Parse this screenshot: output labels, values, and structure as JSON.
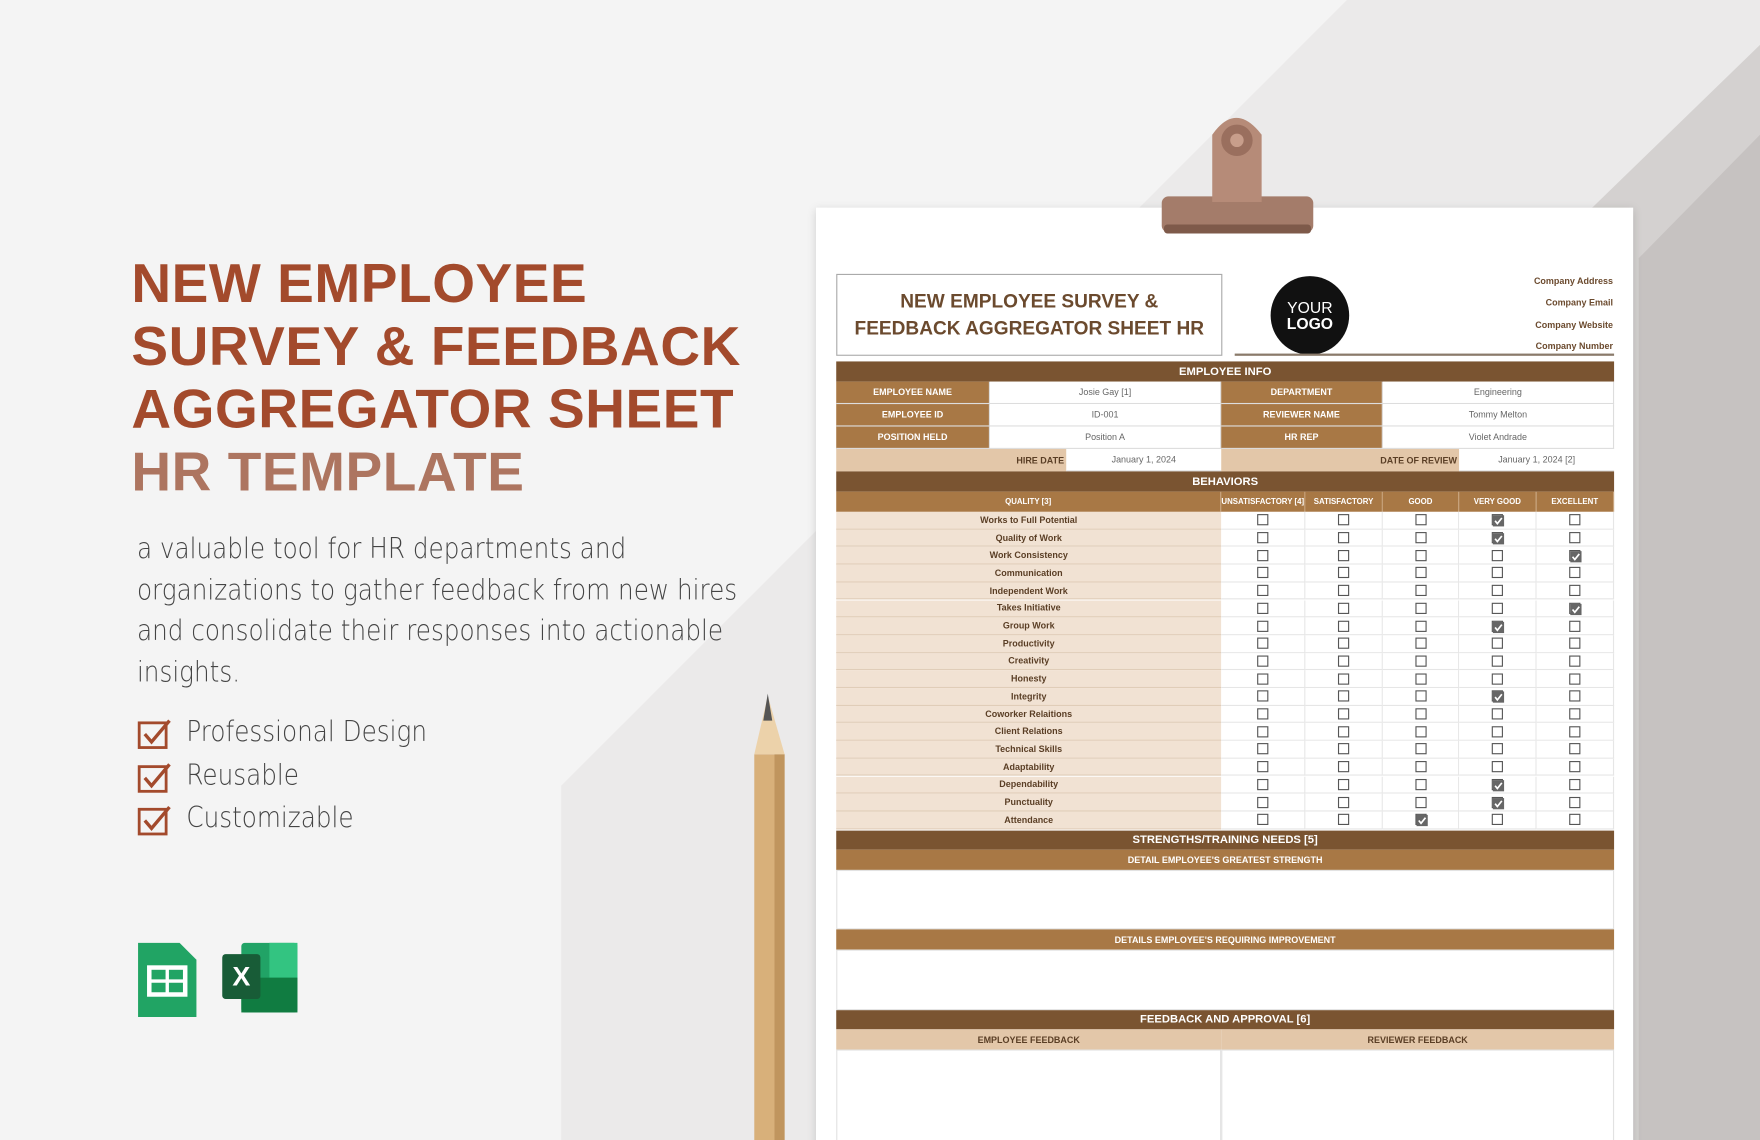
{
  "hero": {
    "title_lines": [
      "NEW EMPLOYEE",
      "SURVEY & FEEDBACK",
      "AGGREGATOR SHEET"
    ],
    "subtitle": "HR TEMPLATE",
    "description": [
      "a valuable tool for HR departments and",
      "organizations to gather feedback from new hires",
      "and consolidate their responses into actionable",
      "insights."
    ],
    "features": [
      "Professional Design",
      "Reusable",
      "Customizable"
    ]
  },
  "sheet": {
    "title_lines": [
      "NEW EMPLOYEE SURVEY &",
      "FEEDBACK AGGREGATOR SHEET HR"
    ],
    "logo": [
      "YOUR",
      "LOGO"
    ],
    "company": [
      "Company Address",
      "Company Email",
      "Company Website",
      "Company Number"
    ],
    "employee_info": {
      "header": "EMPLOYEE INFO",
      "rows": [
        [
          "EMPLOYEE NAME",
          "Josie Gay [1]",
          "DEPARTMENT",
          "Engineering"
        ],
        [
          "EMPLOYEE ID",
          "ID-001",
          "REVIEWER NAME",
          "Tommy Melton"
        ],
        [
          "POSITION HELD",
          "Position A",
          "HR REP",
          "Violet Andrade"
        ]
      ],
      "hire_date_label": "HIRE DATE",
      "hire_date": "January 1, 2024",
      "review_label": "DATE OF REVIEW",
      "review_date": "January 1, 2024 [2]"
    },
    "behaviors": {
      "header": "BEHAVIORS",
      "columns": [
        "QUALITY [3]",
        "UNSATISFACTORY [4]",
        "SATISFACTORY",
        "GOOD",
        "VERY GOOD",
        "EXCELLENT"
      ],
      "rows": [
        "Works to Full Potential",
        "Quality of Work",
        "Work Consistency",
        "Communication",
        "Independent Work",
        "Takes Initiative",
        "Group Work",
        "Productivity",
        "Creativity",
        "Honesty",
        "Integrity",
        "Coworker Relaitions",
        "Client Relations",
        "Technical Skills",
        "Adaptability",
        "Dependability",
        "Punctuality",
        "Attendance"
      ],
      "checks": [
        [
          false,
          false,
          false,
          true,
          false
        ],
        [
          false,
          false,
          false,
          true,
          false
        ],
        [
          false,
          false,
          false,
          false,
          true
        ],
        [
          false,
          false,
          false,
          false,
          false
        ],
        [
          false,
          false,
          false,
          false,
          false
        ],
        [
          false,
          false,
          false,
          false,
          true
        ],
        [
          false,
          false,
          false,
          true,
          false
        ],
        [
          false,
          false,
          false,
          false,
          false
        ],
        [
          false,
          false,
          false,
          false,
          false
        ],
        [
          false,
          false,
          false,
          false,
          false
        ],
        [
          false,
          false,
          false,
          true,
          false
        ],
        [
          false,
          false,
          false,
          false,
          false
        ],
        [
          false,
          false,
          false,
          false,
          false
        ],
        [
          false,
          false,
          false,
          false,
          false
        ],
        [
          false,
          false,
          false,
          false,
          false
        ],
        [
          false,
          false,
          false,
          true,
          false
        ],
        [
          false,
          false,
          false,
          true,
          false
        ],
        [
          false,
          false,
          true,
          false,
          false
        ]
      ]
    },
    "strengths": {
      "header": "STRENGTHS/TRAINING NEEDS [5]",
      "strength": "DETAIL EMPLOYEE'S GREATEST STRENGTH",
      "improvement": "DETAILS EMPLOYEE'S REQUIRING IMPROVEMENT"
    },
    "feedback": {
      "header": "FEEDBACK AND APPROVAL [6]",
      "employee": "EMPLOYEE FEEDBACK",
      "reviewer": "REVIEWER FEEDBACK"
    }
  }
}
